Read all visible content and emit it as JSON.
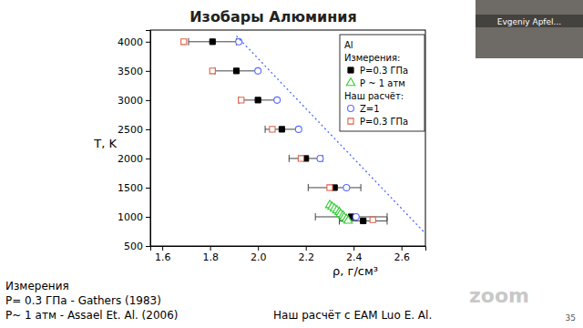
{
  "chart_data": {
    "type": "scatter",
    "title": "Изобары Алюминия",
    "x_label": "ρ, г/см³",
    "y_label": "T, K",
    "xlim": [
      1.55,
      2.7
    ],
    "ylim": [
      500,
      4200
    ],
    "xticks": [
      1.6,
      1.8,
      {
        "value": 2,
        "label": "2.0"
      },
      2.2,
      2.4,
      2.6
    ],
    "yticks": [
      500,
      1000,
      1500,
      2000,
      2500,
      3000,
      3500,
      4000
    ],
    "grid": false,
    "legend": "upper right",
    "legend_title": "Al",
    "series": [
      {
        "name": "P=0.3 ГПа",
        "group": "Измерения:",
        "color": "#000000",
        "marker": "square",
        "x": [
          1.81,
          1.91,
          2.0,
          2.1,
          2.2,
          2.32,
          2.39,
          2.44
        ],
        "values": [
          4000,
          3500,
          3000,
          2500,
          2000,
          1500,
          1000,
          930
        ],
        "x_errors": [
          0.1,
          0.09,
          0.08,
          0.07,
          0.07,
          0.11,
          0.15,
          0.1
        ]
      },
      {
        "name": "P ~ 1 атм",
        "group": "Измерения:",
        "color": "#33cc33",
        "marker": "triangle-open",
        "x": [
          2.3,
          2.31,
          2.32,
          2.33,
          2.34,
          2.345,
          2.355,
          2.36,
          2.37,
          2.377
        ],
        "values": [
          1200,
          1170,
          1140,
          1110,
          1080,
          1050,
          1020,
          990,
          960,
          933
        ]
      },
      {
        "name": "Z=1",
        "group": "Наш расчёт:",
        "color": "#5b6bff",
        "marker": "circle-open",
        "x": [
          1.92,
          2.0,
          2.08,
          2.17,
          2.26,
          2.37,
          2.41
        ],
        "values": [
          4000,
          3500,
          3000,
          2500,
          2000,
          1500,
          1000
        ]
      },
      {
        "name": "P=0.3 ГПа",
        "group": "Наш расчёт:",
        "color": "#e0604a",
        "marker": "square-open",
        "x": [
          1.69,
          1.81,
          1.93,
          2.06,
          2.18,
          2.3,
          2.48
        ],
        "values": [
          4000,
          3500,
          3000,
          2500,
          2000,
          1500,
          950
        ]
      },
      {
        "type": "line",
        "line_style": "dotted",
        "color": "#4a6cff",
        "x": [
          1.91,
          2.75
        ],
        "values": [
          4100,
          500
        ]
      }
    ],
    "annotations": [
      "Измерения",
      "P= 0.3 ГПа - Gathers (1983)",
      "P~ 1 атм  - Assael Et. Al. (2006)",
      "Наш расчёт с EAM Luo E. Al.",
      "35",
      "Evgeniy Apfel...",
      "zoom"
    ]
  }
}
